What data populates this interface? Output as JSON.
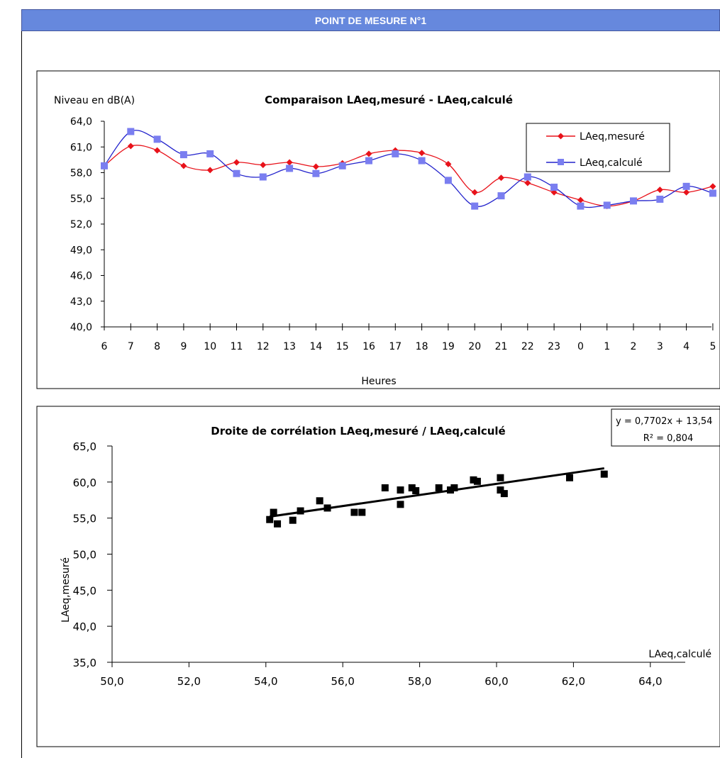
{
  "header": {
    "title": "POINT DE MESURE N°1"
  },
  "colors": {
    "header_bg": "#6688dd",
    "measured": "#e8121a",
    "calculated": "#7a7ef0",
    "regression": "#000000"
  },
  "chart_data": [
    {
      "type": "line",
      "title": "Comparaison LAeq,mesuré - LAeq,calculé",
      "ylabel": "Niveau en dB(A)",
      "xlabel": "Heures",
      "ylim": [
        40,
        64
      ],
      "yticks": [
        "64,0",
        "61,0",
        "58,0",
        "55,0",
        "52,0",
        "49,0",
        "46,0",
        "43,0",
        "40,0"
      ],
      "categories": [
        "6",
        "7",
        "8",
        "9",
        "10",
        "11",
        "12",
        "13",
        "14",
        "15",
        "16",
        "17",
        "18",
        "19",
        "20",
        "21",
        "22",
        "23",
        "0",
        "1",
        "2",
        "3",
        "4",
        "5"
      ],
      "legend_position": "top-right",
      "series": [
        {
          "name": "LAeq,mesuré",
          "marker": "diamond",
          "color": "#e8121a",
          "values": [
            58.8,
            61.1,
            60.6,
            58.8,
            58.3,
            59.2,
            58.9,
            59.2,
            58.7,
            59.1,
            60.2,
            60.6,
            60.3,
            59.0,
            55.7,
            57.4,
            56.8,
            55.7,
            54.8,
            54.1,
            54.7,
            56.0,
            55.7,
            56.4
          ]
        },
        {
          "name": "LAeq,calculé",
          "marker": "square",
          "color": "#7a7ef0",
          "values": [
            58.8,
            62.8,
            61.9,
            60.1,
            60.2,
            57.9,
            57.5,
            58.5,
            57.9,
            58.8,
            59.4,
            60.2,
            59.4,
            57.1,
            54.1,
            55.3,
            57.5,
            56.3,
            54.1,
            54.2,
            54.7,
            54.9,
            56.4,
            55.6
          ]
        }
      ]
    },
    {
      "type": "scatter",
      "title": "Droite de corrélation  LAeq,mesuré / LAeq,calculé",
      "xlabel": "LAeq,calculé",
      "ylabel": "LAeq,mesuré",
      "xlim": [
        50,
        65
      ],
      "ylim": [
        35,
        65
      ],
      "xticks": [
        "50,0",
        "52,0",
        "54,0",
        "56,0",
        "58,0",
        "60,0",
        "62,0",
        "64,0"
      ],
      "yticks": [
        "65,0",
        "60,0",
        "55,0",
        "50,0",
        "45,0",
        "40,0",
        "35,0"
      ],
      "equation": "y = 0,7702x + 13,54",
      "r_squared": "R² = 0,804",
      "regression": {
        "slope": 0.7702,
        "intercept": 13.54,
        "x_range": [
          54.1,
          62.8
        ]
      },
      "points": [
        [
          54.1,
          54.8
        ],
        [
          54.2,
          55.8
        ],
        [
          54.3,
          54.2
        ],
        [
          54.7,
          54.7
        ],
        [
          54.9,
          56.0
        ],
        [
          55.4,
          57.4
        ],
        [
          55.6,
          56.4
        ],
        [
          56.3,
          55.8
        ],
        [
          56.5,
          55.8
        ],
        [
          57.1,
          59.2
        ],
        [
          57.5,
          58.9
        ],
        [
          57.5,
          56.9
        ],
        [
          57.8,
          59.2
        ],
        [
          57.9,
          58.8
        ],
        [
          58.5,
          59.2
        ],
        [
          58.8,
          58.9
        ],
        [
          58.9,
          59.2
        ],
        [
          59.4,
          60.3
        ],
        [
          59.5,
          60.1
        ],
        [
          60.1,
          58.9
        ],
        [
          60.1,
          60.6
        ],
        [
          60.2,
          58.4
        ],
        [
          61.9,
          60.6
        ],
        [
          62.8,
          61.1
        ]
      ]
    }
  ]
}
